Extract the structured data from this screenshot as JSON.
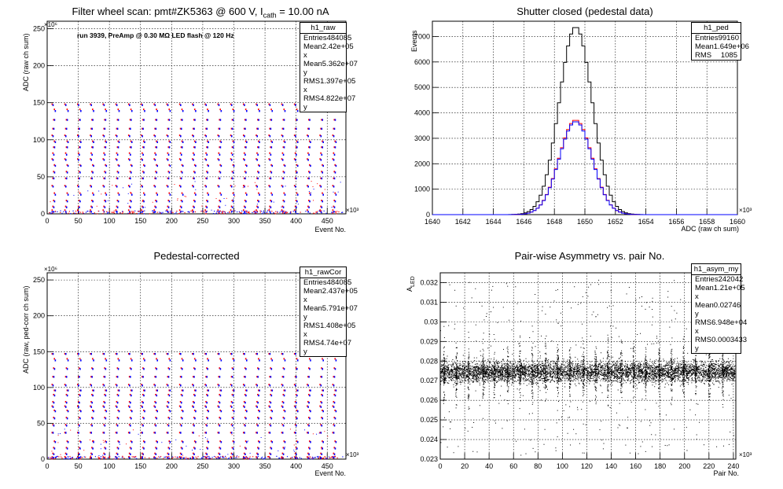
{
  "panels": [
    {
      "title": "Filter wheel scan: pmt#ZK5363 @   600 V, I",
      "title_sub": "cath",
      "title_tail": " = 10.00 nA",
      "ylabel": "ADC (raw ch sum)",
      "xlabel": "Event No.",
      "y_exp": "×10⁶",
      "x_exp": "×10³",
      "note": "run 3939, PreAmp @ 0.30 MΩ LED flash @  120 Hz",
      "stats": {
        "name": "h1_raw",
        "rows": [
          [
            "Entries",
            "484085"
          ],
          [
            "Mean x",
            "2.42e+05"
          ],
          [
            "Mean y",
            "5.362e+07"
          ],
          [
            "RMS x",
            "1.397e+05"
          ],
          [
            "RMS y",
            "4.822e+07"
          ]
        ]
      }
    },
    {
      "title": "Shutter closed (pedestal data)",
      "ylabel": "Events",
      "xlabel": "ADC (raw ch sum)",
      "x_exp": "×10³",
      "stats": {
        "name": "h1_ped",
        "rows": [
          [
            "Entries",
            "99160"
          ],
          [
            "Mean",
            "1.649e+06"
          ],
          [
            "RMS",
            "1085"
          ]
        ]
      }
    },
    {
      "title": "Pedestal-corrected",
      "ylabel": "ADC (raw, ped-corr ch sum)",
      "xlabel": "Event No.",
      "y_exp": "×10⁶",
      "x_exp": "×10³",
      "stats": {
        "name": "h1_rawCor",
        "rows": [
          [
            "Entries",
            "484085"
          ],
          [
            "Mean x",
            "2.437e+05"
          ],
          [
            "Mean y",
            "5.791e+07"
          ],
          [
            "RMS x",
            "1.408e+05"
          ],
          [
            "RMS y",
            "4.74e+07"
          ]
        ]
      }
    },
    {
      "title": "Pair-wise Asymmetry vs. pair No.",
      "ylabel": "A",
      "ylabel_sub": "LED",
      "xlabel": "Pair No.",
      "x_exp": "×10³",
      "stats": {
        "name": "h1_asym_my",
        "rows": [
          [
            "Entries",
            "242042"
          ],
          [
            "Mean x",
            "1.21e+05"
          ],
          [
            "Mean y",
            "0.02746"
          ],
          [
            "RMS x",
            "6.948e+04"
          ],
          [
            "RMS y",
            "0.0003433"
          ]
        ]
      }
    }
  ],
  "chart_data": [
    {
      "type": "scatter",
      "title": "Filter wheel scan: pmt#ZK5363 @   600 V, Icath = 10.00 nA",
      "xlabel": "Event No.",
      "ylabel": "ADC (raw ch sum)",
      "xlim": [
        0,
        480
      ],
      "ylim": [
        0,
        260
      ],
      "xticks": [
        0,
        50,
        100,
        150,
        200,
        250,
        300,
        350,
        400,
        450
      ],
      "yticks": [
        0,
        50,
        100,
        150,
        200,
        250
      ],
      "grid": true,
      "colors": {
        "red": "#ff0000",
        "blue": "#0000ff"
      },
      "levels_red": [
        5,
        10,
        18,
        28,
        38,
        48,
        57,
        66,
        74,
        82,
        90,
        98,
        106,
        115,
        127,
        141,
        148
      ],
      "levels_blue": [
        3,
        9,
        17,
        26,
        37,
        48,
        56,
        65,
        73,
        80,
        90,
        97,
        105,
        115,
        127,
        139,
        147
      ],
      "period": 20.5
    },
    {
      "type": "histogram",
      "title": "Shutter closed (pedestal data)",
      "xlabel": "ADC (raw ch sum)",
      "ylabel": "Events",
      "xlim": [
        1640,
        1660
      ],
      "ylim": [
        0,
        7600
      ],
      "xticks": [
        1640,
        1642,
        1644,
        1646,
        1648,
        1650,
        1652,
        1654,
        1656,
        1658,
        1660
      ],
      "yticks": [
        0,
        1000,
        2000,
        3000,
        4000,
        5000,
        6000,
        7000
      ],
      "grid": true,
      "series": [
        {
          "color": "#000000",
          "mean": 1649.4,
          "sigma": 1.08,
          "peak": 7380
        },
        {
          "color": "#ff0000",
          "mean": 1649.4,
          "sigma": 1.08,
          "peak": 3720
        },
        {
          "color": "#0000ff",
          "mean": 1649.4,
          "sigma": 1.08,
          "peak": 3660
        }
      ]
    },
    {
      "type": "scatter",
      "title": "Pedestal-corrected",
      "xlabel": "Event No.",
      "ylabel": "ADC (raw, ped-corr ch sum)",
      "xlim": [
        0,
        480
      ],
      "ylim": [
        0,
        260
      ],
      "xticks": [
        0,
        50,
        100,
        150,
        200,
        250,
        300,
        350,
        400,
        450
      ],
      "yticks": [
        0,
        50,
        100,
        150,
        200,
        250
      ],
      "grid": true,
      "colors": {
        "red": "#ff0000",
        "blue": "#0000ff"
      },
      "levels_red": [
        3,
        8,
        16,
        25,
        37,
        48,
        58,
        68,
        74,
        80,
        90,
        96,
        104,
        115,
        127,
        140,
        147
      ],
      "levels_blue": [
        2,
        7,
        15,
        24,
        37,
        47,
        57,
        67,
        73,
        79,
        89,
        96,
        103,
        115,
        126,
        138,
        147
      ],
      "period": 20.5
    },
    {
      "type": "scatter",
      "title": "Pair-wise Asymmetry vs. pair No.",
      "xlabel": "Pair No.",
      "ylabel": "ALED",
      "xlim": [
        0,
        242
      ],
      "ylim": [
        0.023,
        0.0325
      ],
      "xticks": [
        0,
        20,
        40,
        60,
        80,
        100,
        120,
        140,
        160,
        180,
        200,
        220,
        240
      ],
      "yticks": [
        0.023,
        0.024,
        0.025,
        0.026,
        0.027,
        0.028,
        0.029,
        0.03,
        0.031,
        0.032
      ],
      "grid": true,
      "band_center": 0.02746,
      "band_rms": 0.00025,
      "spike_positions": [
        3,
        13,
        23,
        35,
        44,
        55,
        65,
        75,
        86,
        96,
        106,
        117,
        127,
        137,
        148,
        158,
        168,
        179,
        189,
        199,
        209,
        220,
        231
      ]
    }
  ]
}
